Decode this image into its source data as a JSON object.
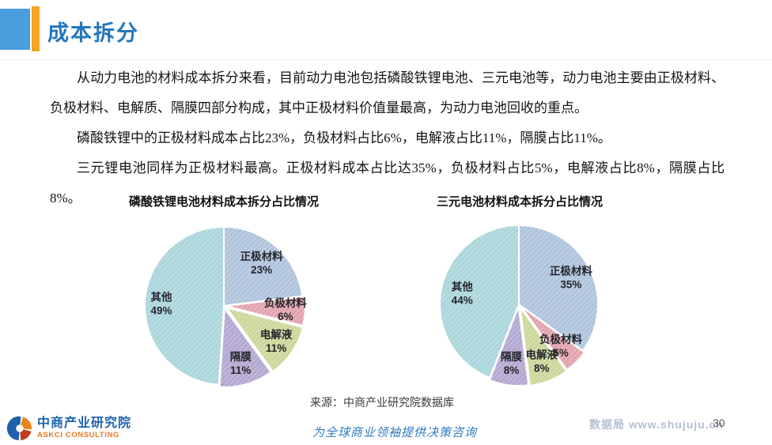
{
  "header": {
    "title": "成本拆分"
  },
  "body": {
    "paragraph1": "从动力电池的材料成本拆分来看，目前动力电池包括磷酸铁锂电池、三元电池等，动力电池主要由正极材料、负极材料、电解质、隔膜四部分构成，其中正极材料价值量最高，为动力电池回收的重点。",
    "paragraph2": "磷酸铁锂中的正极材料成本占比23%，负极材料占比6%，电解液占比11%，隔膜占比11%。",
    "paragraph3": "三元锂电池同样为正极材料最高。正极材料成本占比达35%，负极材料占比5%，电解液占比8%，隔膜占比8%。"
  },
  "chart_data": [
    {
      "type": "pie",
      "title": "磷酸铁锂电池材料成本拆分占比情况",
      "labels": [
        "正极材料",
        "负极材料",
        "电解液",
        "隔膜",
        "其他"
      ],
      "values": [
        23,
        6,
        11,
        11,
        49
      ],
      "colors": [
        "#b0c4dd",
        "#e2a4ad",
        "#ccd79c",
        "#b4a9d1",
        "#abd6dc"
      ],
      "start_angle_deg": 0,
      "direction": "clockwise",
      "legend": "none",
      "label_format": "name + percent"
    },
    {
      "type": "pie",
      "title": "三元电池材料成本拆分占比情况",
      "labels": [
        "正极材料",
        "负极材料",
        "电解液",
        "隔膜",
        "其他"
      ],
      "values": [
        35,
        5,
        8,
        8,
        44
      ],
      "colors": [
        "#b0c4dd",
        "#e2a4ad",
        "#ccd79c",
        "#b4a9d1",
        "#abd6dc"
      ],
      "start_angle_deg": 0,
      "direction": "clockwise",
      "legend": "none",
      "label_format": "name + percent"
    }
  ],
  "source": "来源：中商产业研究院数据库",
  "footer": {
    "logo_cn": "中商产业研究院",
    "logo_en": "ASKCI CONSULTING",
    "slogan": "为全球商业领袖提供决策咨询",
    "watermark": "数据局 www.shujuju.cn",
    "page_number": "30"
  },
  "colors": {
    "accent_square_blue": "#4a9ede",
    "accent_bar_orange": "#f5a422",
    "title_blue": "#2277bd",
    "logo_blue": "#1c61a9",
    "logo_orange": "#e8861e",
    "logo_red": "#bf3c1f"
  }
}
